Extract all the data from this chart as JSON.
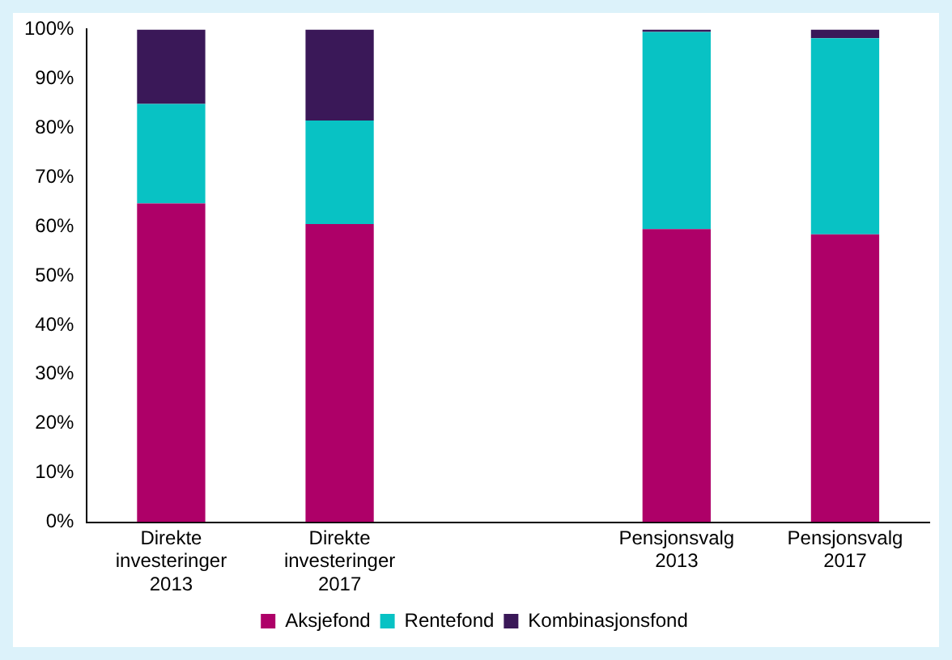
{
  "chart_data": {
    "type": "bar",
    "stacked": true,
    "categories": [
      "Direkte\ninvesteringer\n2013",
      "Direkte\ninvesteringer\n2017",
      null,
      "Pensjonsvalg\n2013",
      "Pensjonsvalg\n2017"
    ],
    "series": [
      {
        "name": "Aksjefond",
        "color": "#ae0068",
        "values": [
          64.7,
          60.5,
          null,
          59.5,
          58.4
        ]
      },
      {
        "name": "Rentefond",
        "color": "#08c2c4",
        "values": [
          20.2,
          21,
          null,
          40,
          39.8
        ]
      },
      {
        "name": "Kombinasjonsfond",
        "color": "#3a1858",
        "values": [
          15.1,
          18.5,
          null,
          0.5,
          1.8
        ]
      }
    ],
    "ylim": [
      0,
      100
    ],
    "yticks": [
      {
        "value": 0,
        "label": "0%"
      },
      {
        "value": 10,
        "label": "10%"
      },
      {
        "value": 20,
        "label": "20%"
      },
      {
        "value": 30,
        "label": "30%"
      },
      {
        "value": 40,
        "label": "40%"
      },
      {
        "value": 50,
        "label": "50%"
      },
      {
        "value": 60,
        "label": "60%"
      },
      {
        "value": 70,
        "label": "70%"
      },
      {
        "value": 80,
        "label": "80%"
      },
      {
        "value": 90,
        "label": "90%"
      },
      {
        "value": 100,
        "label": "100%"
      }
    ],
    "grid": false,
    "legend": "bottom"
  }
}
